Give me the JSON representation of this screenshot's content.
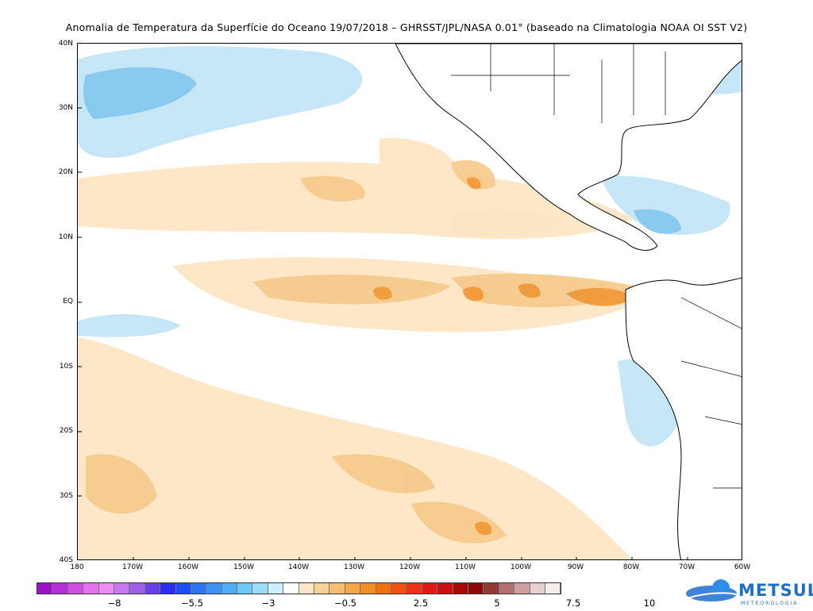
{
  "title": "Anomalia de Temperatura da Superfície do Oceano 19/07/2018 – GHRSST/JPL/NASA 0.01° (baseado na Climatologia NOAA OI SST V2)",
  "lat_labels": [
    "40N",
    "30N",
    "20N",
    "10N",
    "EQ",
    "10S",
    "20S",
    "30S",
    "40S"
  ],
  "lon_labels": [
    "180",
    "170W",
    "160W",
    "150W",
    "140W",
    "130W",
    "120W",
    "110W",
    "100W",
    "90W",
    "80W",
    "70W",
    "60W"
  ],
  "colorbar": {
    "colors": [
      "#9a13c9",
      "#b52fd6",
      "#cf4fe3",
      "#e472ed",
      "#e88ef0",
      "#c878ec",
      "#9f5ee8",
      "#6b3fe8",
      "#2d2df0",
      "#1c4ff2",
      "#2e74f2",
      "#3d93f2",
      "#4eb0f2",
      "#6fc8f4",
      "#9ddcf6",
      "#cdeefa",
      "#ffffff",
      "#fbe7c8",
      "#f7d39a",
      "#f5be70",
      "#f2a848",
      "#f08f22",
      "#f07010",
      "#f05010",
      "#ee3018",
      "#e01818",
      "#c81010",
      "#a80808",
      "#8a0a0a",
      "#903a32",
      "#b07070",
      "#cca0a0",
      "#e6cfcf",
      "#f6ecec"
    ],
    "tick_labels": [
      "−8",
      "−5.5",
      "−3",
      "−0.5",
      "2.5",
      "5",
      "7.5",
      "10"
    ]
  },
  "logo": {
    "name": "METSUL",
    "subtitle": "METEOROLOGIA"
  }
}
